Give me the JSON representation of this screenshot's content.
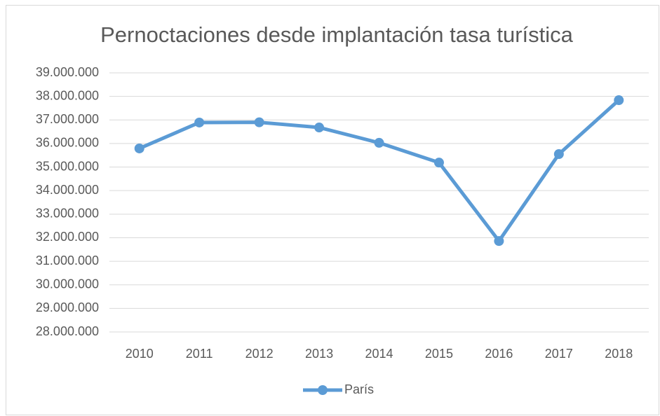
{
  "chart_data": {
    "type": "line",
    "title": "Pernoctaciones desde implantación tasa turística",
    "categories": [
      "2010",
      "2011",
      "2012",
      "2013",
      "2014",
      "2015",
      "2016",
      "2017",
      "2018"
    ],
    "series": [
      {
        "name": "París",
        "color": "#5b9bd5",
        "values": [
          35790000,
          36890000,
          36900000,
          36680000,
          36030000,
          35190000,
          31860000,
          35550000,
          37840000
        ]
      }
    ],
    "ylim": [
      28000000,
      39000000
    ],
    "yticks": [
      {
        "value": 28000000,
        "label": "28.000.000"
      },
      {
        "value": 29000000,
        "label": "29.000.000"
      },
      {
        "value": 30000000,
        "label": "30.000.000"
      },
      {
        "value": 31000000,
        "label": "31.000.000"
      },
      {
        "value": 32000000,
        "label": "32.000.000"
      },
      {
        "value": 33000000,
        "label": "33.000.000"
      },
      {
        "value": 34000000,
        "label": "34.000.000"
      },
      {
        "value": 35000000,
        "label": "35.000.000"
      },
      {
        "value": 36000000,
        "label": "36.000.000"
      },
      {
        "value": 37000000,
        "label": "37.000.000"
      },
      {
        "value": 38000000,
        "label": "38.000.000"
      },
      {
        "value": 39000000,
        "label": "39.000.000"
      }
    ],
    "grid": true,
    "legend": "bottom"
  }
}
